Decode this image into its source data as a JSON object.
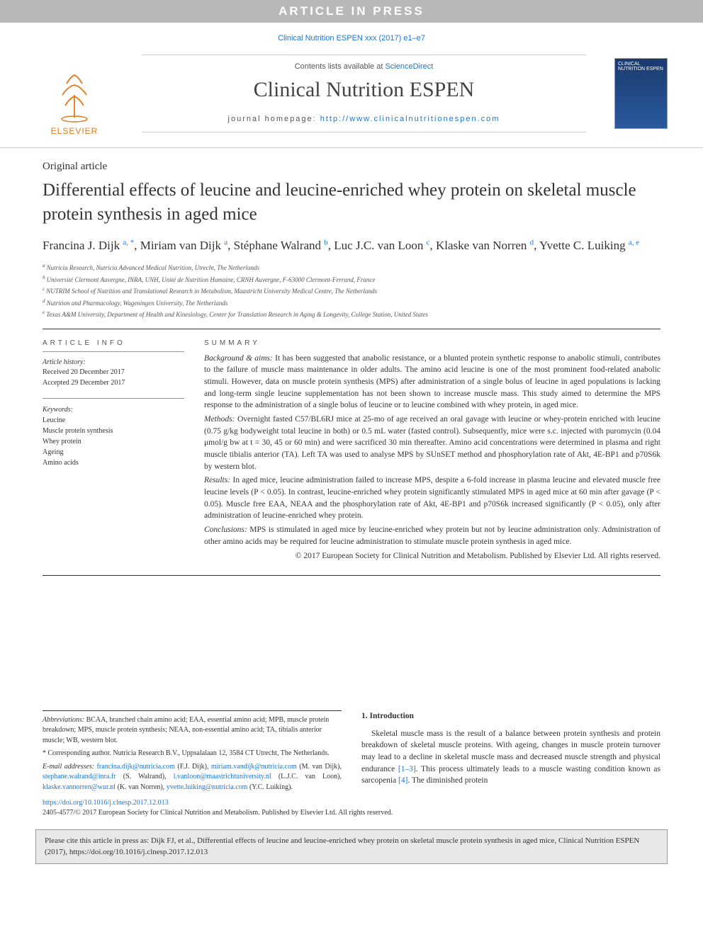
{
  "banner": {
    "text": "ARTICLE IN PRESS"
  },
  "journal_ref": "Clinical Nutrition ESPEN xxx (2017) e1–e7",
  "masthead": {
    "contents_text": "Contents lists available at ",
    "sd_link": "ScienceDirect",
    "journal_title": "Clinical Nutrition ESPEN",
    "homepage_label": "journal homepage: ",
    "homepage_url": "http://www.clinicalnutritionespen.com",
    "logo_text": "ELSEVIER",
    "cover_text": "CLINICAL NUTRITION ESPEN"
  },
  "article_type": "Original article",
  "title": "Differential effects of leucine and leucine-enriched whey protein on skeletal muscle protein synthesis in aged mice",
  "authors": [
    {
      "name": "Francina J. Dijk",
      "aff": "a, *"
    },
    {
      "name": "Miriam van Dijk",
      "aff": "a"
    },
    {
      "name": "Stéphane Walrand",
      "aff": "b"
    },
    {
      "name": "Luc J.C. van Loon",
      "aff": "c"
    },
    {
      "name": "Klaske van Norren",
      "aff": "d"
    },
    {
      "name": "Yvette C. Luiking",
      "aff": "a, e"
    }
  ],
  "affiliations": [
    {
      "key": "a",
      "text": "Nutricia Research, Nutricia Advanced Medical Nutrition, Utrecht, The Netherlands"
    },
    {
      "key": "b",
      "text": "Université Clermont Auvergne, INRA, UNH, Unité de Nutrition Humaine, CRNH Auvergne, F-63000 Clermont-Ferrand, France"
    },
    {
      "key": "c",
      "text": "NUTRIM School of Nutrition and Translational Research in Metabolism, Maastricht University Medical Centre, The Netherlands"
    },
    {
      "key": "d",
      "text": "Nutrition and Pharmacology, Wageningen University, The Netherlands"
    },
    {
      "key": "e",
      "text": "Texas A&M University, Department of Health and Kinesiology, Center for Translation Research in Aging & Longevity, College Station, United States"
    }
  ],
  "article_info": {
    "heading": "ARTICLE INFO",
    "history_label": "Article history:",
    "received": "Received 20 December 2017",
    "accepted": "Accepted 29 December 2017",
    "keywords_label": "Keywords:",
    "keywords": [
      "Leucine",
      "Muscle protein synthesis",
      "Whey protein",
      "Ageing",
      "Amino acids"
    ]
  },
  "summary": {
    "heading": "SUMMARY",
    "paras": [
      {
        "lead": "Background & aims:",
        "text": " It has been suggested that anabolic resistance, or a blunted protein synthetic response to anabolic stimuli, contributes to the failure of muscle mass maintenance in older adults. The amino acid leucine is one of the most prominent food-related anabolic stimuli. However, data on muscle protein synthesis (MPS) after administration of a single bolus of leucine in aged populations is lacking and long-term single leucine supplementation has not been shown to increase muscle mass. This study aimed to determine the MPS response to the administration of a single bolus of leucine or to leucine combined with whey protein, in aged mice."
      },
      {
        "lead": "Methods:",
        "text": " Overnight fasted C57/BL6RJ mice at 25-mo of age received an oral gavage with leucine or whey-protein enriched with leucine (0.75 g/kg bodyweight total leucine in both) or 0.5 mL water (fasted control). Subsequently, mice were s.c. injected with puromycin (0.04 μmol/g bw at t = 30, 45 or 60 min) and were sacrificed 30 min thereafter. Amino acid concentrations were determined in plasma and right muscle tibialis anterior (TA). Left TA was used to analyse MPS by SUnSET method and phosphorylation rate of Akt, 4E-BP1 and p70S6k by western blot."
      },
      {
        "lead": "Results:",
        "text": " In aged mice, leucine administration failed to increase MPS, despite a 6-fold increase in plasma leucine and elevated muscle free leucine levels (P < 0.05). In contrast, leucine-enriched whey protein significantly stimulated MPS in aged mice at 60 min after gavage (P < 0.05). Muscle free EAA, NEAA and the phosphorylation rate of Akt, 4E-BP1 and p70S6k increased significantly (P < 0.05), only after administration of leucine-enriched whey protein."
      },
      {
        "lead": "Conclusions:",
        "text": " MPS is stimulated in aged mice by leucine-enriched whey protein but not by leucine administration only. Administration of other amino acids may be required for leucine administration to stimulate muscle protein synthesis in aged mice."
      }
    ],
    "copyright": "© 2017 European Society for Clinical Nutrition and Metabolism. Published by Elsevier Ltd. All rights reserved."
  },
  "footnotes": {
    "abbrev_lead": "Abbreviations:",
    "abbrev_text": " BCAA, branched chain amino acid; EAA, essential amino acid; MPB, muscle protein breakdown; MPS, muscle protein synthesis; NEAA, non-essential amino acid; TA, tibialis anterior muscle; WB, western blot.",
    "corr": "* Corresponding author. Nutricia Research B.V., Uppsalalaan 12, 3584 CT Utrecht, The Netherlands.",
    "email_label": "E-mail addresses:",
    "emails": [
      {
        "addr": "francina.dijk@nutricia.com",
        "who": "(F.J. Dijk)"
      },
      {
        "addr": "miriam.vandijk@nutricia.com",
        "who": "(M. van Dijk)"
      },
      {
        "addr": "stephane.walrand@inra.fr",
        "who": "(S. Walrand)"
      },
      {
        "addr": "l.vanloon@maastrichtuniversity.nl",
        "who": "(L.J.C. van Loon)"
      },
      {
        "addr": "klaske.vannorren@wur.nl",
        "who": "(K. van Norren)"
      },
      {
        "addr": "yvette.luiking@nutricia.com",
        "who": "(Y.C. Luiking)."
      }
    ]
  },
  "intro": {
    "heading": "1. Introduction",
    "text_1": "Skeletal muscle mass is the result of a balance between protein synthesis and protein breakdown of skeletal muscle proteins. With ageing, changes in muscle protein turnover may lead to a decline in skeletal muscle mass and decreased muscle strength and physical endurance ",
    "ref_1": "[1–3]",
    "text_2": ". This process ultimately leads to a muscle wasting condition known as sarcopenia ",
    "ref_2": "[4]",
    "text_3": ". The diminished protein"
  },
  "doi": {
    "url": "https://doi.org/10.1016/j.clnesp.2017.12.013",
    "issn_line": "2405-4577/© 2017 European Society for Clinical Nutrition and Metabolism. Published by Elsevier Ltd. All rights reserved."
  },
  "cite_box": "Please cite this article in press as: Dijk FJ, et al., Differential effects of leucine and leucine-enriched whey protein on skeletal muscle protein synthesis in aged mice, Clinical Nutrition ESPEN (2017), https://doi.org/10.1016/j.clnesp.2017.12.013",
  "colors": {
    "link": "#1976d2",
    "banner_bg": "#b8b8b8",
    "logo_orange": "#e67817",
    "cover_bg_top": "#1a3a6e"
  }
}
